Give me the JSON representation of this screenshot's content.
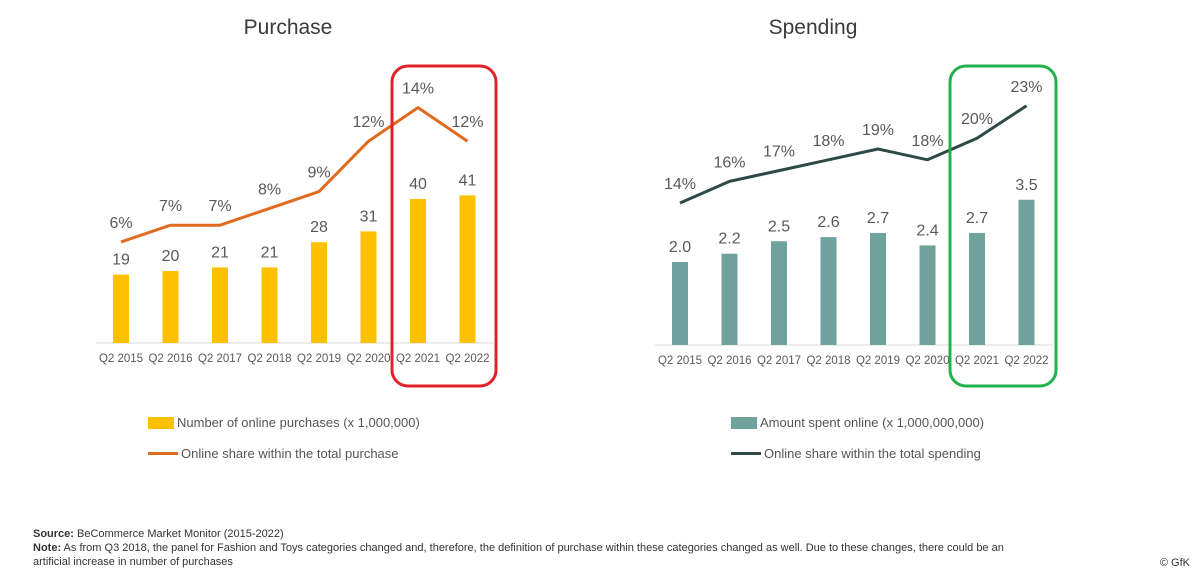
{
  "chart_data": [
    {
      "type": "bar+line",
      "title": "Purchase",
      "categories": [
        "Q2 2015",
        "Q2 2016",
        "Q2 2017",
        "Q2 2018",
        "Q2 2019",
        "Q2 2020",
        "Q2 2021",
        "Q2 2022"
      ],
      "series": [
        {
          "name": "Number of online purchases (x 1,000,000)",
          "type": "bar",
          "values": [
            19,
            20,
            21,
            21,
            28,
            31,
            40,
            41
          ],
          "labels": [
            "19",
            "20",
            "21",
            "21",
            "28",
            "31",
            "40",
            "41"
          ]
        },
        {
          "name": "Online share within the total purchase",
          "type": "line",
          "values": [
            6,
            7,
            7,
            8,
            9,
            12,
            14,
            12
          ],
          "labels": [
            "6%",
            "7%",
            "7%",
            "8%",
            "9%",
            "12%",
            "14%",
            "12%"
          ]
        }
      ],
      "highlight": {
        "from": "Q2 2021",
        "to": "Q2 2022"
      },
      "colors": {
        "bar": "#FFC000",
        "line": "#E06B1F",
        "highlight": "#E0232B"
      }
    },
    {
      "type": "bar+line",
      "title": "Spending",
      "categories": [
        "Q2 2015",
        "Q2 2016",
        "Q2 2017",
        "Q2 2018",
        "Q2 2019",
        "Q2 2020",
        "Q2 2021",
        "Q2 2022"
      ],
      "series": [
        {
          "name": "Amount spent online (x 1,000,000,000)",
          "type": "bar",
          "values": [
            2.0,
            2.2,
            2.5,
            2.6,
            2.7,
            2.4,
            2.7,
            3.5
          ],
          "labels": [
            "2.0",
            "2.2",
            "2.5",
            "2.6",
            "2.7",
            "2.4",
            "2.7",
            "3.5"
          ]
        },
        {
          "name": "Online share within the total spending",
          "type": "line",
          "values": [
            14,
            16,
            17,
            18,
            19,
            18,
            20,
            23
          ],
          "labels": [
            "14%",
            "16%",
            "17%",
            "18%",
            "19%",
            "18%",
            "20%",
            "23%"
          ]
        }
      ],
      "highlight": {
        "from": "Q2 2021",
        "to": "Q2 2022"
      },
      "colors": {
        "bar": "#6FA29D",
        "line": "#2E4A47",
        "highlight": "#22B14C"
      }
    }
  ],
  "footnote": {
    "source_label": "Source:",
    "source_text": " BeCommerce Market Monitor (2015-2022)",
    "note_label": "Note:",
    "note_text": " As from Q3 2018, the panel for Fashion and Toys categories changed and, therefore, the definition of purchase within these categories changed as well. Due to these changes, there could be an artificial increase in number of purchases"
  },
  "copyright": "© GfK"
}
